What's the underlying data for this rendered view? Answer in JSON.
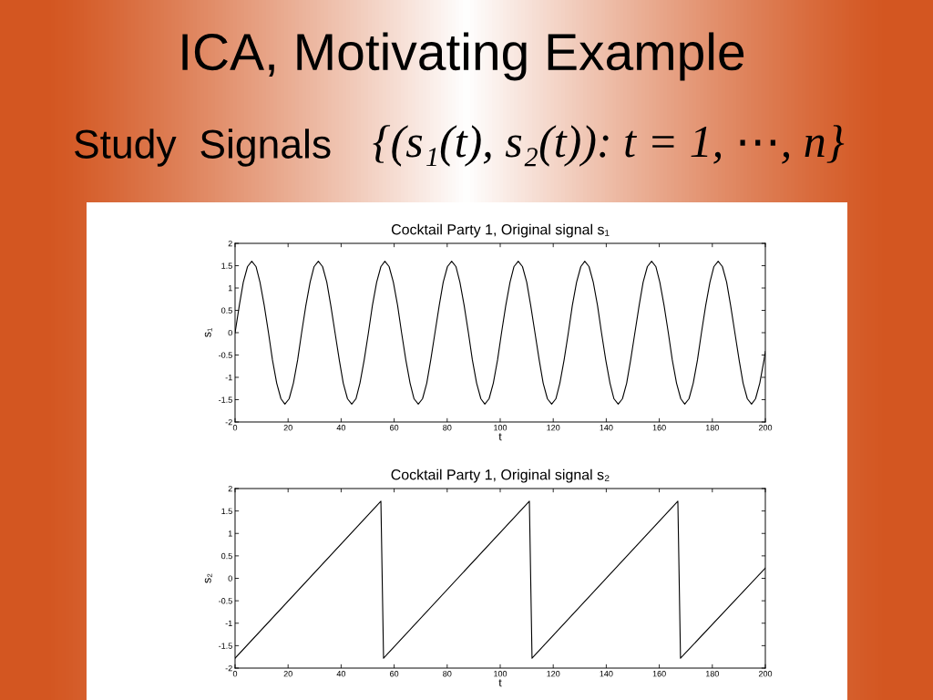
{
  "chart_data": [
    {
      "type": "line",
      "title": "Cocktail Party 1, Original signal s₁",
      "xlabel": "t",
      "ylabel": "s₁",
      "annotations": [
        "ICA, Motivating Example",
        "Study  Signals",
        "{(s₁(t), s₂(t)): t = 1, ⋯, n}"
      ],
      "x": [
        0,
        1.6,
        3.1,
        4.7,
        6.3,
        7.9,
        9.4,
        11.0,
        12.6,
        14.1,
        15.7,
        17.3,
        18.8,
        20.4,
        22.0,
        23.6,
        25.1,
        26.7,
        28.3,
        29.8,
        31.4,
        33.0,
        34.6,
        36.1,
        37.7,
        39.3,
        40.8,
        42.4,
        44.0,
        45.6,
        47.1,
        48.7,
        50.3,
        51.8,
        53.4,
        55.0,
        56.5,
        58.1,
        59.7,
        61.3,
        62.8,
        64.4,
        66.0,
        67.5,
        69.1,
        70.7,
        72.3,
        73.8,
        75.4,
        77.0,
        78.5,
        80.1,
        81.7,
        83.3,
        84.8,
        86.4,
        88.0,
        89.5,
        91.1,
        92.7,
        94.2,
        95.8,
        97.4,
        99.0,
        100.5,
        102.1,
        103.7,
        105.2,
        106.8,
        108.4,
        110.0,
        111.5,
        113.1,
        114.7,
        116.2,
        117.8,
        119.4,
        121.0,
        122.5,
        124.1,
        125.7,
        127.2,
        128.8,
        130.4,
        131.9,
        133.5,
        135.1,
        136.7,
        138.2,
        139.8,
        141.4,
        142.9,
        144.5,
        146.1,
        147.7,
        149.2,
        150.8,
        152.4,
        153.9,
        155.5,
        157.1,
        158.7,
        160.2,
        161.8,
        163.4,
        164.9,
        166.5,
        168.1,
        169.6,
        171.2,
        172.8,
        174.4,
        175.9,
        177.5,
        179.1,
        180.6,
        182.2,
        183.8,
        185.4,
        186.9,
        188.5,
        190.1,
        191.6,
        193.2,
        194.8,
        196.3,
        197.9,
        199.5,
        200
      ],
      "series": [
        {
          "color": "#000000",
          "values": [
            0,
            0.61,
            1.13,
            1.48,
            1.6,
            1.48,
            1.13,
            0.61,
            0,
            -0.61,
            -1.13,
            -1.48,
            -1.6,
            -1.48,
            -1.13,
            -0.61,
            0,
            0.61,
            1.13,
            1.48,
            1.6,
            1.48,
            1.13,
            0.61,
            0,
            -0.61,
            -1.13,
            -1.48,
            -1.6,
            -1.48,
            -1.13,
            -0.61,
            0,
            0.61,
            1.13,
            1.48,
            1.6,
            1.48,
            1.13,
            0.61,
            0,
            -0.61,
            -1.13,
            -1.48,
            -1.6,
            -1.48,
            -1.13,
            -0.61,
            0,
            0.61,
            1.13,
            1.48,
            1.6,
            1.48,
            1.13,
            0.61,
            0,
            -0.61,
            -1.13,
            -1.48,
            -1.6,
            -1.48,
            -1.13,
            -0.61,
            0,
            0.61,
            1.13,
            1.48,
            1.6,
            1.48,
            1.13,
            0.61,
            0,
            -0.61,
            -1.13,
            -1.48,
            -1.6,
            -1.48,
            -1.13,
            -0.61,
            0,
            0.61,
            1.13,
            1.48,
            1.6,
            1.48,
            1.13,
            0.61,
            0,
            -0.61,
            -1.13,
            -1.48,
            -1.6,
            -1.48,
            -1.13,
            -0.61,
            0,
            0.61,
            1.13,
            1.48,
            1.6,
            1.48,
            1.13,
            0.61,
            0,
            -0.61,
            -1.13,
            -1.48,
            -1.6,
            -1.48,
            -1.13,
            -0.61,
            0,
            0.61,
            1.13,
            1.48,
            1.6,
            1.48,
            1.13,
            0.61,
            0,
            -0.61,
            -1.13,
            -1.48,
            -1.6,
            -1.48,
            -1.13,
            -0.61,
            -0.42
          ]
        }
      ],
      "xlim": [
        0,
        200
      ],
      "ylim": [
        -2,
        2
      ],
      "xticks": [
        0,
        20,
        40,
        60,
        80,
        100,
        120,
        140,
        160,
        180,
        200
      ],
      "yticks": [
        -2,
        -1.5,
        -1,
        -0.5,
        0,
        0.5,
        1,
        1.5,
        2
      ]
    },
    {
      "type": "line",
      "title": "Cocktail Party 1, Original signal s₂",
      "xlabel": "t",
      "ylabel": "s₂",
      "x": [
        0,
        55,
        56,
        111,
        112,
        167,
        168,
        200
      ],
      "series": [
        {
          "color": "#000000",
          "values": [
            -1.78,
            1.72,
            -1.78,
            1.72,
            -1.78,
            1.72,
            -1.78,
            0.23
          ]
        }
      ],
      "xlim": [
        0,
        200
      ],
      "ylim": [
        -2,
        2
      ],
      "xticks": [
        0,
        20,
        40,
        60,
        80,
        100,
        120,
        140,
        160,
        180,
        200
      ],
      "yticks": [
        -2,
        -1.5,
        -1,
        -0.5,
        0,
        0.5,
        1,
        1.5,
        2
      ]
    }
  ]
}
